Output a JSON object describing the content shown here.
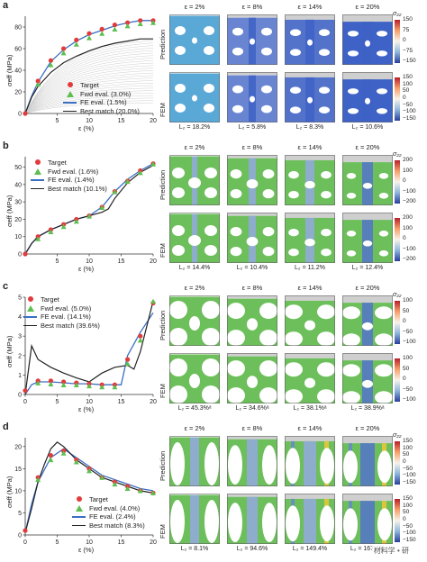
{
  "panels": [
    {
      "letter": "a",
      "legend": [
        "Target",
        "Fwd eval. (3.0%)",
        "FE eval. (1.5%)",
        "Best match (20.0%)"
      ],
      "eps_labels": [
        "ε = 2%",
        "ε = 8%",
        "ε = 14%",
        "ε = 20%"
      ],
      "row_labels": [
        "Prediction",
        "FEM"
      ],
      "l2_labels": [
        "L₂ = 18.2%",
        "L₂ = 5.8%",
        "L₂ = 8.3%",
        "L₂ = 10.6%"
      ],
      "colorbar": {
        "title": "σ₂₂",
        "ticks": [
          "150",
          "75",
          "0",
          "−75",
          "−150"
        ]
      },
      "colorbar_fem": {
        "ticks": [
          "150",
          "100",
          "50",
          "0",
          "−50",
          "−100",
          "−150"
        ]
      }
    },
    {
      "letter": "b",
      "legend": [
        "Target",
        "Fwd eval. (1.6%)",
        "FE eval. (1.4%)",
        "Best match (10.1%)"
      ],
      "eps_labels": [
        "ε = 2%",
        "ε = 8%",
        "ε = 14%",
        "ε = 20%"
      ],
      "row_labels": [
        "Prediction",
        "FEM"
      ],
      "l2_labels": [
        "L₂ = 14.4%",
        "L₂ = 10.4%",
        "L₂ = 11.2%",
        "L₂ = 12.4%"
      ],
      "colorbar": {
        "title": "σ₂₂",
        "ticks": [
          "200",
          "100",
          "0",
          "−100",
          "−200"
        ]
      },
      "colorbar_fem": {
        "ticks": [
          "200",
          "100",
          "0",
          "−100",
          "−200"
        ]
      }
    },
    {
      "letter": "c",
      "legend": [
        "Target",
        "Fwd eval. (5.0%)",
        "FE eval. (14.1%)",
        "Best match (39.6%)"
      ],
      "eps_labels": [
        "ε = 2%",
        "ε = 8%",
        "ε = 14%",
        "ε = 20%"
      ],
      "row_labels": [
        "Prediction",
        "FEM"
      ],
      "l2_labels": [
        "L₂ = 45.3%ᵃ",
        "L₂ = 34.6%ᵃ",
        "L₂ = 38.1%ᵃ",
        "L₂ = 38.9%ᵃ"
      ],
      "colorbar": {
        "title": "σ₂₂",
        "ticks": [
          "100",
          "50",
          "0",
          "−50",
          "−100"
        ]
      },
      "colorbar_fem": {
        "ticks": [
          "100",
          "50",
          "0",
          "−50",
          "−100"
        ]
      }
    },
    {
      "letter": "d",
      "legend": [
        "Target",
        "Fwd eval. (4.0%)",
        "FE eval. (2.4%)",
        "Best match (8.3%)"
      ],
      "eps_labels": [
        "ε = 2%",
        "ε = 8%",
        "ε = 14%",
        "ε = 20%"
      ],
      "row_labels": [
        "Prediction",
        "FEM"
      ],
      "l2_labels": [
        "L₂ = 8.1%",
        "L₂ = 94.6%",
        "L₂ = 149.4%",
        "L₂ = 167.4%"
      ],
      "colorbar": {
        "title": "σ₂₂",
        "ticks": [
          "150",
          "100",
          "50",
          "0",
          "−50",
          "−100",
          "−150"
        ]
      },
      "colorbar_fem": {
        "ticks": [
          "150",
          "100",
          "50",
          "0",
          "−50",
          "−100",
          "−150"
        ]
      }
    }
  ],
  "axis_text": {
    "ylabel": "σeff (MPa)",
    "xlabel": "ε (%)"
  },
  "watermark": "材料学 • 研",
  "colors": {
    "target": "#e23b3b",
    "fwd": "#5cbf4f",
    "fe": "#3a6fc4",
    "best": "#222222",
    "lattice_green": "#6cbf5a",
    "background_curves": "#cfcfcf"
  },
  "chart_data": [
    {
      "type": "line",
      "xlabel": "ε (%)",
      "ylabel": "σeff (MPa)",
      "xlim": [
        0,
        20
      ],
      "ylim": [
        0,
        90
      ],
      "xticks": [
        5,
        10,
        15,
        20
      ],
      "yticks": [
        0,
        20,
        40,
        60,
        80
      ],
      "series": [
        {
          "name": "Target",
          "x": [
            0,
            2,
            4,
            6,
            8,
            10,
            12,
            14,
            16,
            18,
            20
          ],
          "y": [
            0,
            30,
            49,
            60,
            68,
            74,
            78,
            82,
            84,
            86,
            86
          ]
        },
        {
          "name": "Fwd eval. (3.0%)",
          "x": [
            2,
            4,
            6,
            8,
            10,
            12,
            14,
            16,
            18,
            20
          ],
          "y": [
            29,
            47,
            58,
            66,
            72,
            76,
            80,
            83,
            85,
            86
          ]
        },
        {
          "name": "FE eval. (1.5%)",
          "x": [
            0,
            1,
            2,
            4,
            6,
            8,
            10,
            12,
            14,
            16,
            18,
            20
          ],
          "y": [
            0,
            16,
            29,
            48,
            59,
            67,
            73,
            77,
            81,
            84,
            86,
            86
          ]
        },
        {
          "name": "Best match (20.0%)",
          "x": [
            0,
            1,
            2,
            4,
            6,
            8,
            10,
            12,
            14,
            16,
            18,
            20
          ],
          "y": [
            0,
            15,
            25,
            38,
            47,
            53,
            58,
            62,
            65,
            67,
            69,
            69
          ]
        }
      ]
    },
    {
      "type": "line",
      "xlabel": "ε (%)",
      "ylabel": "σeff (MPa)",
      "xlim": [
        0,
        20
      ],
      "ylim": [
        0,
        56
      ],
      "xticks": [
        5,
        10,
        15,
        20
      ],
      "yticks": [
        0,
        10,
        20,
        30,
        40,
        50
      ],
      "series": [
        {
          "name": "Target",
          "x": [
            0,
            2,
            4,
            6,
            8,
            10,
            12,
            14,
            16,
            18,
            20
          ],
          "y": [
            0,
            10,
            14,
            17,
            20,
            22,
            27,
            36,
            42,
            48,
            52
          ]
        },
        {
          "name": "Fwd eval. (1.6%)",
          "x": [
            2,
            4,
            6,
            8,
            10,
            12,
            14,
            16,
            18,
            20
          ],
          "y": [
            10,
            14,
            17,
            20,
            23,
            28,
            37,
            43,
            48,
            53
          ]
        },
        {
          "name": "FE eval. (1.4%)",
          "x": [
            0,
            1,
            2,
            4,
            6,
            8,
            10,
            12,
            14,
            16,
            18,
            20
          ],
          "y": [
            0,
            6,
            10,
            14,
            17,
            20,
            22,
            27,
            36,
            43,
            48,
            52
          ]
        },
        {
          "name": "Best match (10.1%)",
          "x": [
            0,
            1,
            2,
            4,
            6,
            8,
            10,
            12,
            13,
            14,
            16,
            18,
            20
          ],
          "y": [
            0,
            6,
            10,
            14,
            17,
            20,
            22,
            24,
            26,
            32,
            41,
            47,
            51
          ]
        }
      ]
    },
    {
      "type": "line",
      "xlabel": "ε (%)",
      "ylabel": "σeff (MPa)",
      "xlim": [
        0,
        20
      ],
      "ylim": [
        0,
        5
      ],
      "xticks": [
        0,
        5,
        10,
        15,
        20
      ],
      "yticks": [
        0,
        1,
        2,
        3,
        4,
        5
      ],
      "series": [
        {
          "name": "Target",
          "x": [
            0,
            2,
            4,
            6,
            8,
            10,
            12,
            14,
            16,
            18,
            20
          ],
          "y": [
            0.2,
            0.7,
            0.7,
            0.65,
            0.6,
            0.55,
            0.5,
            0.5,
            1.8,
            3.0,
            4.7
          ]
        },
        {
          "name": "Fwd eval. (5.0%)",
          "x": [
            2,
            4,
            6,
            8,
            10,
            12,
            14,
            16,
            18,
            20
          ],
          "y": [
            0.7,
            0.65,
            0.6,
            0.6,
            0.55,
            0.5,
            0.5,
            1.7,
            2.9,
            4.9
          ]
        },
        {
          "name": "FE eval. (14.1%)",
          "x": [
            0,
            1,
            2,
            4,
            6,
            8,
            10,
            12,
            14,
            15,
            16,
            18,
            20
          ],
          "y": [
            0,
            0.5,
            0.65,
            0.65,
            0.6,
            0.55,
            0.55,
            0.5,
            0.5,
            0.5,
            2.0,
            3.2,
            4.2
          ]
        },
        {
          "name": "Best match (39.6%)",
          "x": [
            0,
            1,
            2,
            4,
            6,
            8,
            10,
            12,
            14,
            16,
            17,
            18,
            20
          ],
          "y": [
            0,
            2.5,
            1.8,
            1.4,
            1.1,
            0.85,
            0.65,
            1.1,
            1.4,
            1.5,
            1.3,
            2.2,
            4.8
          ]
        }
      ]
    },
    {
      "type": "line",
      "xlabel": "ε (%)",
      "ylabel": "σeff (MPa)",
      "xlim": [
        0,
        20
      ],
      "ylim": [
        0,
        22
      ],
      "xticks": [
        0,
        5,
        10,
        15,
        20
      ],
      "yticks": [
        0,
        5,
        10,
        15,
        20
      ],
      "series": [
        {
          "name": "Target",
          "x": [
            0,
            2,
            4,
            6,
            8,
            10,
            12,
            14,
            16,
            18,
            20
          ],
          "y": [
            1,
            13,
            18,
            19,
            17,
            15,
            13,
            12,
            11,
            10,
            9.5
          ]
        },
        {
          "name": "Fwd eval. (4.0%)",
          "x": [
            2,
            4,
            6,
            8,
            10,
            12,
            14,
            16,
            18,
            20
          ],
          "y": [
            13,
            17.5,
            19,
            17,
            15,
            13.5,
            12,
            11,
            10.5,
            10
          ]
        },
        {
          "name": "FE eval. (2.4%)",
          "x": [
            0,
            1,
            2,
            4,
            6,
            8,
            10,
            12,
            14,
            16,
            18,
            20
          ],
          "y": [
            0.5,
            7,
            12,
            17.5,
            19.5,
            17.5,
            15.5,
            13.5,
            12.5,
            11.5,
            10.5,
            10
          ]
        },
        {
          "name": "Best match (8.3%)",
          "x": [
            0,
            1,
            2,
            3,
            4,
            5,
            6,
            8,
            10,
            12,
            14,
            16,
            18,
            20
          ],
          "y": [
            0.5,
            6,
            12,
            16,
            19.5,
            21,
            20,
            17,
            15,
            13,
            12,
            11,
            10,
            9.5
          ]
        }
      ]
    }
  ]
}
